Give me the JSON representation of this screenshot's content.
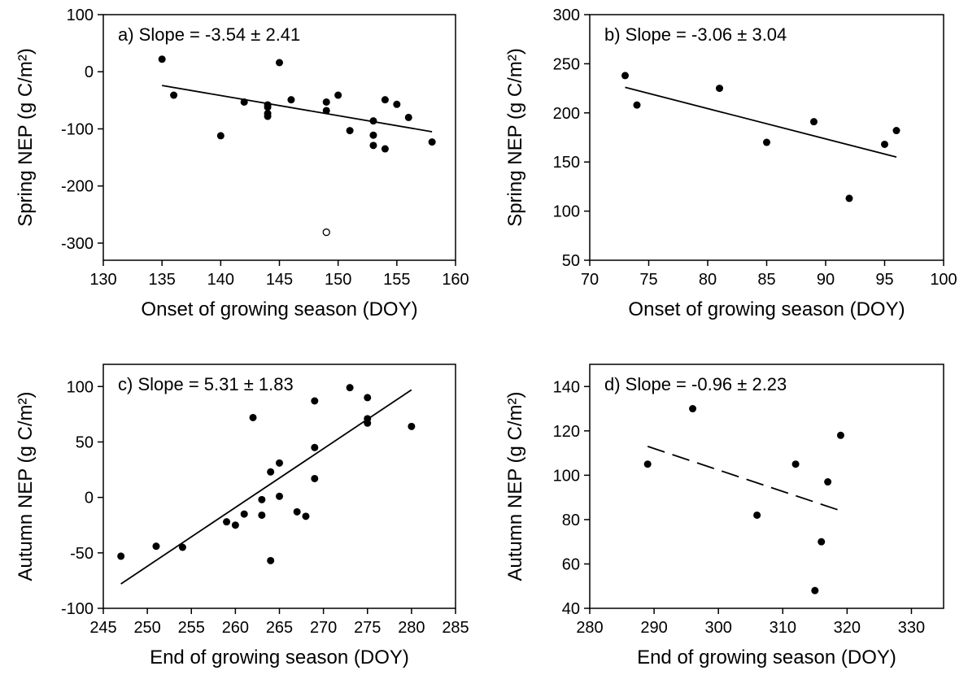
{
  "chart_data": [
    {
      "type": "scatter",
      "panel": "a",
      "annotation": "a)  Slope = -3.54 ± 2.41",
      "xlabel": "Onset of growing season (DOY)",
      "ylabel": "Spring NEP (g C/m²)",
      "xlim": [
        130,
        160
      ],
      "ylim": [
        -330,
        100
      ],
      "xticks": [
        130,
        135,
        140,
        145,
        150,
        155,
        160
      ],
      "yticks": [
        -300,
        -200,
        -100,
        0,
        100
      ],
      "points": [
        [
          135,
          22
        ],
        [
          136,
          -41
        ],
        [
          140,
          -112
        ],
        [
          142,
          -53
        ],
        [
          144,
          -58
        ],
        [
          144,
          -62
        ],
        [
          144,
          -73
        ],
        [
          144,
          -78
        ],
        [
          145,
          16
        ],
        [
          146,
          -49
        ],
        [
          149,
          -53
        ],
        [
          149,
          -68
        ],
        [
          150,
          -41
        ],
        [
          151,
          -103
        ],
        [
          153,
          -86
        ],
        [
          153,
          -111
        ],
        [
          153,
          -129
        ],
        [
          154,
          -49
        ],
        [
          154,
          -135
        ],
        [
          155,
          -57
        ],
        [
          156,
          -80
        ],
        [
          158,
          -123
        ]
      ],
      "outliers": [
        [
          149,
          -281
        ]
      ],
      "fit": {
        "x": [
          135,
          158
        ],
        "y": [
          -24,
          -105
        ],
        "style": "solid"
      }
    },
    {
      "type": "scatter",
      "panel": "b",
      "annotation": "b)  Slope = -3.06 ± 3.04",
      "xlabel": "Onset of growing season (DOY)",
      "ylabel": "Spring NEP (g C/m²)",
      "xlim": [
        70,
        100
      ],
      "ylim": [
        50,
        300
      ],
      "xticks": [
        70,
        75,
        80,
        85,
        90,
        95,
        100
      ],
      "yticks": [
        50,
        100,
        150,
        200,
        250,
        300
      ],
      "points": [
        [
          73,
          238
        ],
        [
          74,
          208
        ],
        [
          81,
          225
        ],
        [
          85,
          170
        ],
        [
          89,
          191
        ],
        [
          92,
          113
        ],
        [
          95,
          168
        ],
        [
          96,
          182
        ]
      ],
      "outliers": [],
      "fit": {
        "x": [
          73,
          96
        ],
        "y": [
          226,
          155
        ],
        "style": "solid"
      }
    },
    {
      "type": "scatter",
      "panel": "c",
      "annotation": "c)  Slope = 5.31 ± 1.83",
      "xlabel": "End of growing season (DOY)",
      "ylabel": "Autumn NEP (g C/m²)",
      "xlim": [
        245,
        285
      ],
      "ylim": [
        -100,
        120
      ],
      "xticks": [
        245,
        250,
        255,
        260,
        265,
        270,
        275,
        280,
        285
      ],
      "yticks": [
        -100,
        -50,
        0,
        50,
        100
      ],
      "points": [
        [
          247,
          -53
        ],
        [
          251,
          -44
        ],
        [
          254,
          -45
        ],
        [
          259,
          -22
        ],
        [
          260,
          -25
        ],
        [
          261,
          -15
        ],
        [
          262,
          72
        ],
        [
          263,
          -2
        ],
        [
          263,
          -16
        ],
        [
          264,
          23
        ],
        [
          264,
          -57
        ],
        [
          265,
          31
        ],
        [
          265,
          1
        ],
        [
          267,
          -13
        ],
        [
          268,
          -17
        ],
        [
          269,
          87
        ],
        [
          269,
          45
        ],
        [
          269,
          17
        ],
        [
          273,
          99
        ],
        [
          275,
          90
        ],
        [
          275,
          71
        ],
        [
          275,
          67
        ],
        [
          280,
          64
        ]
      ],
      "outliers": [],
      "fit": {
        "x": [
          247,
          280
        ],
        "y": [
          -78,
          97
        ],
        "style": "solid"
      }
    },
    {
      "type": "scatter",
      "panel": "d",
      "annotation": "d)  Slope = -0.96 ± 2.23",
      "xlabel": "End of growing season (DOY)",
      "ylabel": "Autumn NEP (g C/m²)",
      "xlim": [
        280,
        335
      ],
      "ylim": [
        40,
        150
      ],
      "xticks": [
        280,
        290,
        300,
        310,
        320,
        330
      ],
      "yticks": [
        40,
        60,
        80,
        100,
        120,
        140
      ],
      "points": [
        [
          289,
          105
        ],
        [
          296,
          130
        ],
        [
          306,
          82
        ],
        [
          312,
          105
        ],
        [
          315,
          48
        ],
        [
          316,
          70
        ],
        [
          317,
          97
        ],
        [
          319,
          118
        ]
      ],
      "outliers": [],
      "fit": {
        "x": [
          289,
          319
        ],
        "y": [
          113,
          84
        ],
        "style": "dashed"
      }
    }
  ]
}
